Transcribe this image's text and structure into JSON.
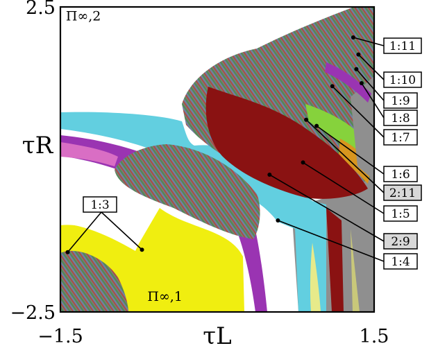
{
  "chart_data": {
    "type": "heatmap",
    "xlabel": "τL",
    "ylabel": "τR",
    "xlim": [
      -1.5,
      1.5
    ],
    "ylim": [
      -2.5,
      2.5
    ],
    "x_ticks": [
      {
        "value": -1.5,
        "label": "−1.5"
      },
      {
        "value": 1.5,
        "label": "1.5"
      }
    ],
    "y_ticks": [
      {
        "value": 2.5,
        "label": "2.5"
      },
      {
        "value": -2.5,
        "label": "−2.5"
      }
    ],
    "region_labels": [
      {
        "text": "Π∞,2",
        "x": -1.28,
        "y": 2.28
      },
      {
        "text": "Π∞,1",
        "x": -0.5,
        "y": -2.32
      }
    ],
    "annotations": [
      {
        "label": "1:11",
        "point": [
          1.3,
          2.0
        ],
        "shaded": false
      },
      {
        "label": "1:10",
        "point": [
          1.35,
          1.72
        ],
        "shaded": false
      },
      {
        "label": "1:9",
        "point": [
          1.33,
          1.48
        ],
        "shaded": false
      },
      {
        "label": "1:8",
        "point": [
          1.38,
          1.25
        ],
        "shaded": false
      },
      {
        "label": "1:7",
        "point": [
          1.1,
          1.2
        ],
        "shaded": false
      },
      {
        "label": "1:6",
        "point": [
          0.95,
          0.55
        ],
        "shaded": false
      },
      {
        "label": "2:11",
        "point": [
          0.85,
          0.65
        ],
        "shaded": true
      },
      {
        "label": "1:5",
        "point": [
          0.82,
          -0.05
        ],
        "shaded": false
      },
      {
        "label": "2:9",
        "point": [
          0.5,
          -0.25
        ],
        "shaded": true
      },
      {
        "label": "1:4",
        "point": [
          0.58,
          -1.0
        ],
        "shaded": false
      },
      {
        "label": "1:3",
        "point": [
          -1.43,
          -1.52
        ],
        "shaded": false
      },
      {
        "label": "1:3",
        "point": [
          -0.72,
          -1.48
        ],
        "shaded": false
      }
    ],
    "grid": false
  },
  "colors": {
    "cyan": "#62cfe0",
    "yellow": "#f0ee10",
    "gray": "#8f8f8f",
    "dark_red": "#8a1212",
    "purple": "#9a34b2",
    "green": "#86d23c",
    "orange": "#d8951e",
    "pink": "#d96ec4"
  }
}
